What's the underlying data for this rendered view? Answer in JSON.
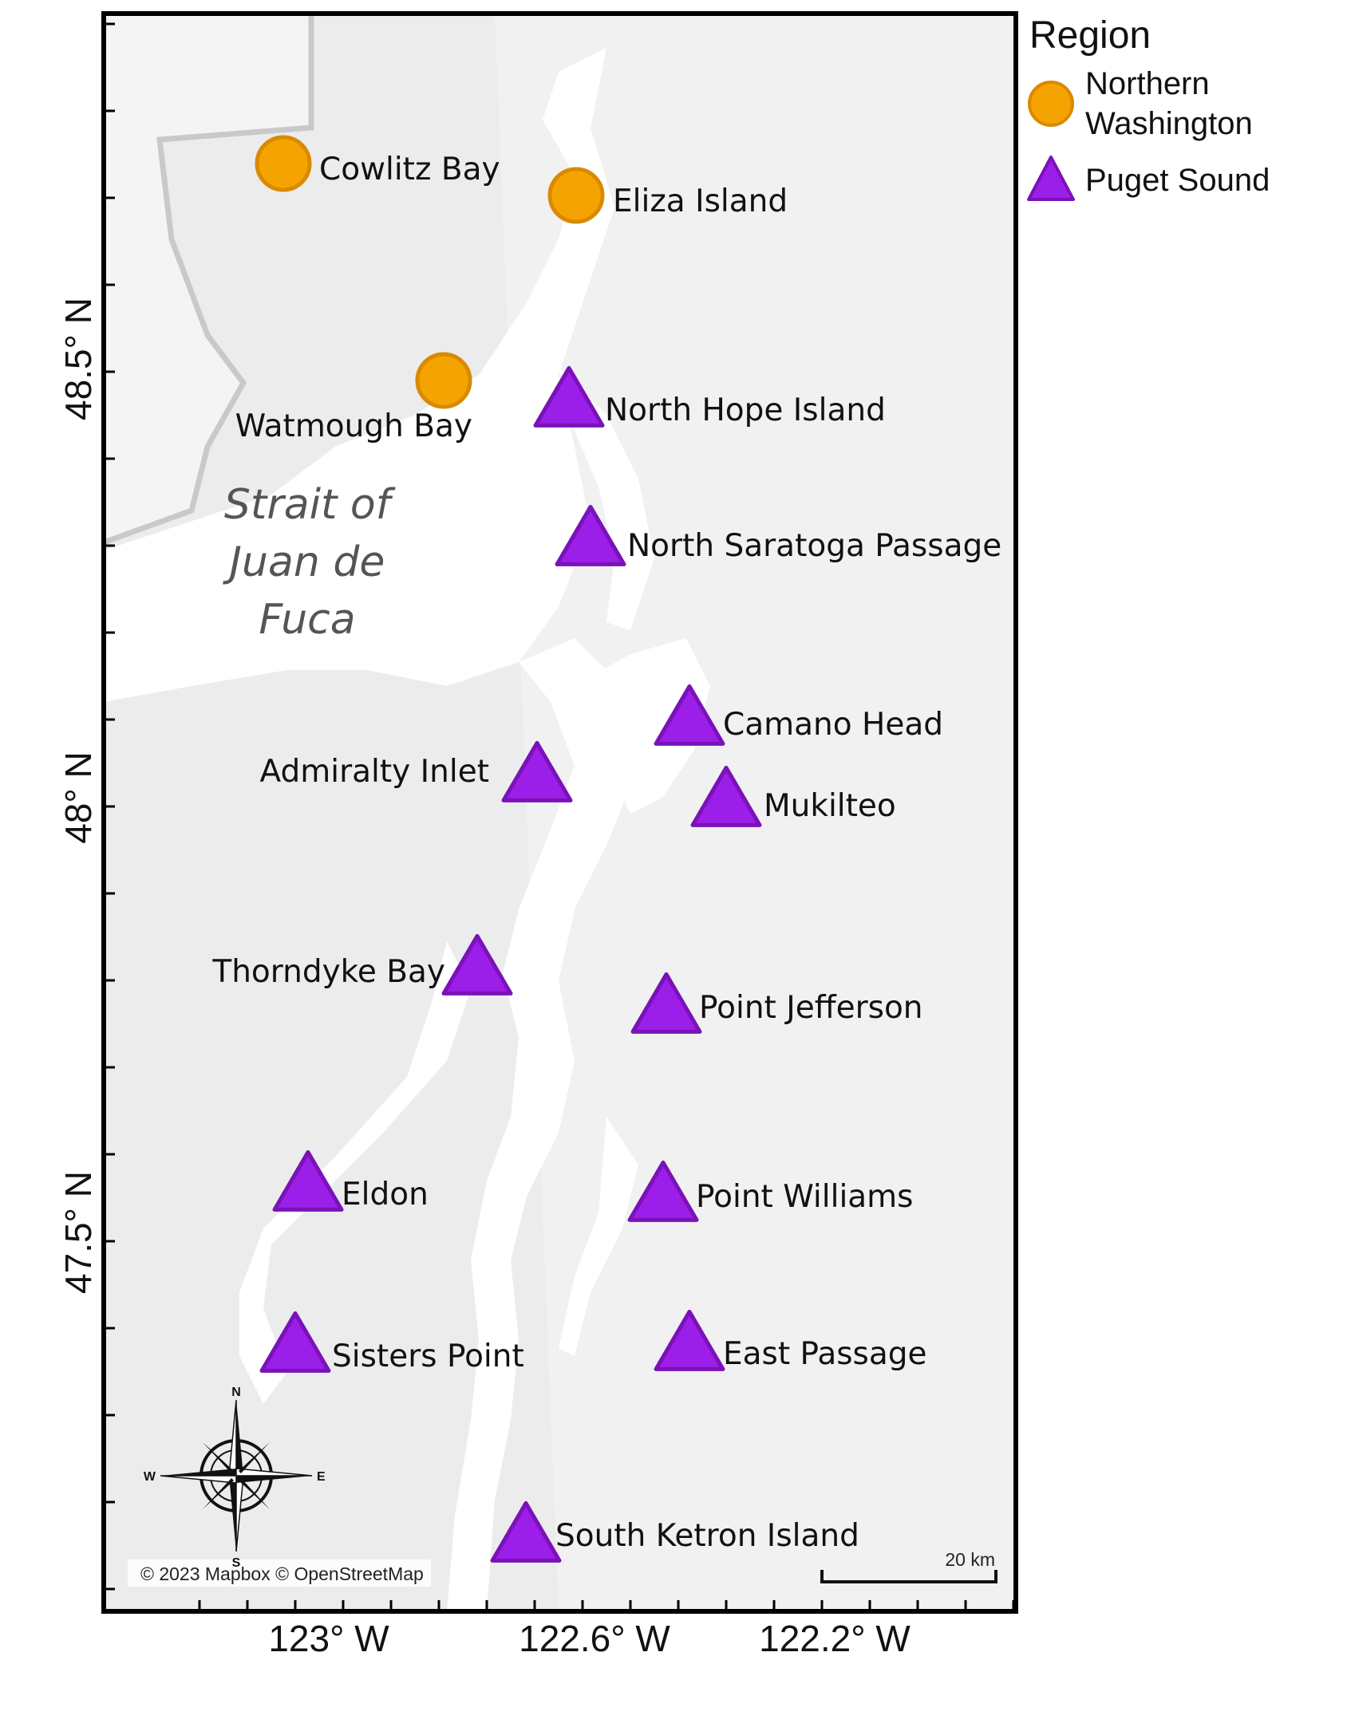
{
  "map": {
    "water_label_lines": [
      "Strait of",
      "Juan de",
      "Fuca"
    ],
    "attribution": "© 2023 Mapbox © OpenStreetMap",
    "scale_bar_label": "20 km",
    "compass": {
      "n": "N",
      "s": "S",
      "e": "E",
      "w": "W"
    },
    "axis_labels": {
      "x": [
        "123° W",
        "122.6° W",
        "122.2° W"
      ],
      "y": [
        "48.5° N",
        "48° N",
        "47.5° N"
      ]
    },
    "colors": {
      "northern_washington": "#F5A300",
      "northern_washington_stroke": "#D98A00",
      "puget_sound": "#9B1FE8",
      "puget_sound_stroke": "#7A12B8",
      "land": "#ECECEC",
      "water": "#FFFFFF",
      "frame": "#000000"
    }
  },
  "legend": {
    "title": "Region",
    "entries": [
      {
        "label_lines": [
          "Northern",
          "Washington"
        ],
        "marker": "circle",
        "region": "northern_washington"
      },
      {
        "label_lines": [
          "Puget Sound"
        ],
        "marker": "triangle",
        "region": "puget_sound"
      }
    ]
  },
  "sites": [
    {
      "name": "Cowlitz Bay",
      "region": "northern_washington",
      "marker": "circle"
    },
    {
      "name": "Eliza Island",
      "region": "northern_washington",
      "marker": "circle"
    },
    {
      "name": "Watmough Bay",
      "region": "northern_washington",
      "marker": "circle"
    },
    {
      "name": "North Hope Island",
      "region": "puget_sound",
      "marker": "triangle"
    },
    {
      "name": "North Saratoga Passage",
      "region": "puget_sound",
      "marker": "triangle"
    },
    {
      "name": "Camano Head",
      "region": "puget_sound",
      "marker": "triangle"
    },
    {
      "name": "Admiralty Inlet",
      "region": "puget_sound",
      "marker": "triangle"
    },
    {
      "name": "Mukilteo",
      "region": "puget_sound",
      "marker": "triangle"
    },
    {
      "name": "Thorndyke Bay",
      "region": "puget_sound",
      "marker": "triangle"
    },
    {
      "name": "Point Jefferson",
      "region": "puget_sound",
      "marker": "triangle"
    },
    {
      "name": "Eldon",
      "region": "puget_sound",
      "marker": "triangle"
    },
    {
      "name": "Point Williams",
      "region": "puget_sound",
      "marker": "triangle"
    },
    {
      "name": "Sisters Point",
      "region": "puget_sound",
      "marker": "triangle"
    },
    {
      "name": "East Passage",
      "region": "puget_sound",
      "marker": "triangle"
    },
    {
      "name": "South Ketron Island",
      "region": "puget_sound",
      "marker": "triangle"
    }
  ]
}
